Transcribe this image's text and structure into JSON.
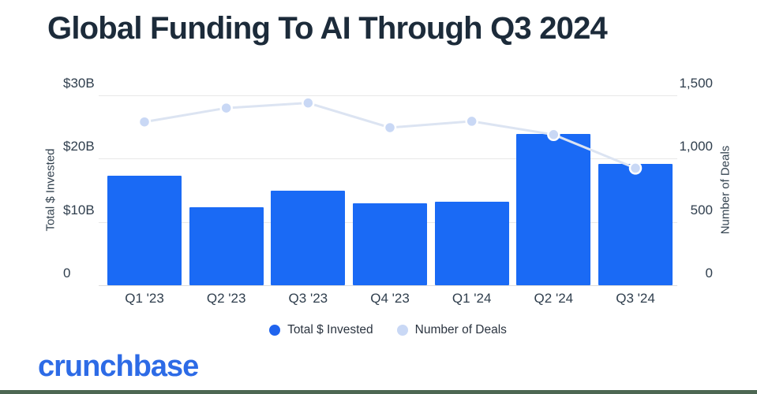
{
  "title": "Global Funding To AI Through Q3 2024",
  "footer": {
    "brand": "crunchbase"
  },
  "colors": {
    "title_text": "#1c2b3a",
    "bar_blue": "#1a6af5",
    "line_light_blue": "#dce4f2",
    "dot_light_blue": "#c9d8f5",
    "dot_ring_white": "#ffffff",
    "legend_invested_dot": "#2064ee",
    "legend_deals_dot": "#c9d8f5",
    "axis_text": "#2f3e4d",
    "gridline_gray": "#e8e8e8",
    "brand_blue": "#2d6be6",
    "footer_accent_green": "#4d6753"
  },
  "chart_data": {
    "type": "bar",
    "title": "Global Funding To AI Through Q3 2024",
    "categories": [
      "Q1 '23",
      "Q2 '23",
      "Q3 '23",
      "Q4 '23",
      "Q1 '24",
      "Q2 '24",
      "Q3 '24"
    ],
    "series": [
      {
        "name": "Total $ Invested",
        "type": "bar",
        "axis": "left",
        "unit": "USD billions",
        "values": [
          17.3,
          12.3,
          15.0,
          12.9,
          13.2,
          23.9,
          19.2
        ]
      },
      {
        "name": "Number of Deals",
        "type": "line",
        "axis": "right",
        "unit": "deals",
        "values": [
          1290,
          1400,
          1440,
          1245,
          1295,
          1190,
          925
        ]
      }
    ],
    "left_axis": {
      "label": "Total $ Invested",
      "ticks": [
        "$30B",
        "$20B",
        "$10B",
        "0"
      ],
      "tick_values": [
        30,
        20,
        10,
        0
      ],
      "min": 0,
      "max": 30
    },
    "right_axis": {
      "label": "Number of Deals",
      "ticks": [
        "1,500",
        "1,000",
        "500",
        "0"
      ],
      "tick_values": [
        1500,
        1000,
        500,
        0
      ],
      "min": 0,
      "max": 1500
    },
    "grid": true,
    "legend_position": "bottom"
  }
}
